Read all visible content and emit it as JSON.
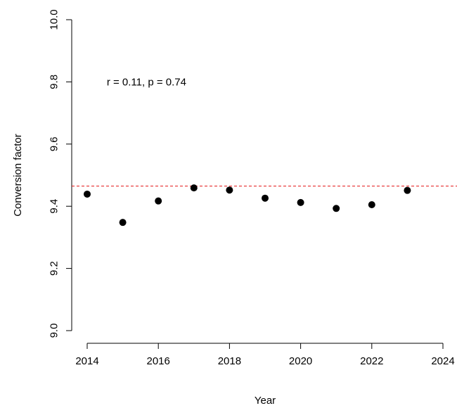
{
  "chart_data": {
    "type": "scatter",
    "xlabel": "Year",
    "ylabel": "Conversion factor",
    "xlim": [
      2014,
      2024
    ],
    "ylim": [
      9.0,
      10.0
    ],
    "x_ticks": [
      2014,
      2016,
      2018,
      2020,
      2022,
      2024
    ],
    "y_ticks": [
      "9.0",
      "9.2",
      "9.4",
      "9.6",
      "9.8",
      "10.0"
    ],
    "series": [
      {
        "x": [
          2014,
          2015,
          2016,
          2017,
          2018,
          2019,
          2020,
          2021,
          2022,
          2023
        ],
        "y": [
          9.439,
          9.348,
          9.417,
          9.459,
          9.452,
          9.426,
          9.412,
          9.393,
          9.405,
          9.451
        ],
        "color": "#000000"
      }
    ],
    "reference_line": {
      "y": 9.465,
      "color": "#e41a1c",
      "style": "dashed"
    },
    "annotation": {
      "text": "r = 0.11, p = 0.74",
      "x": 2014.55,
      "y": 9.8
    },
    "grid": false
  }
}
